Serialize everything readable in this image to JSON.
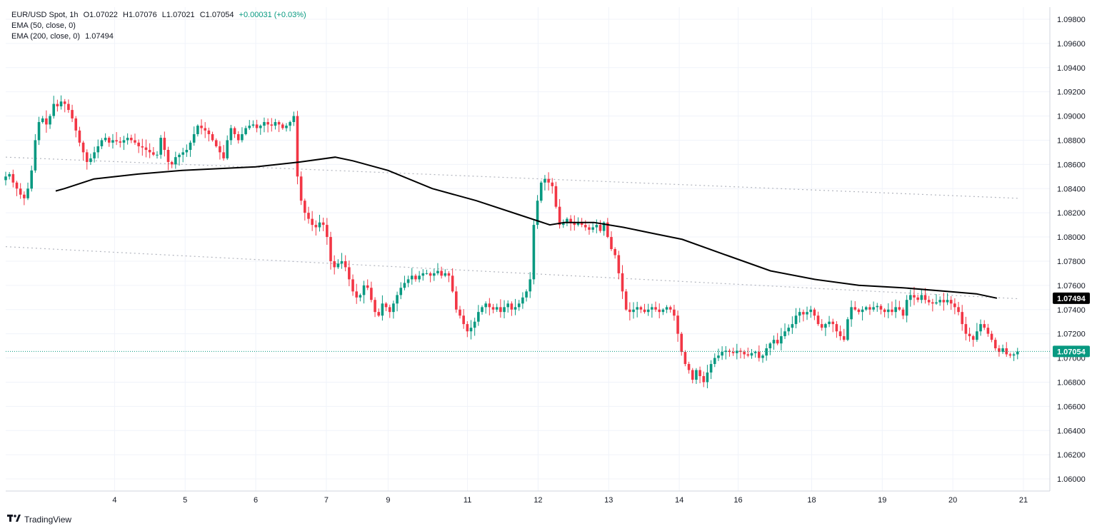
{
  "legend": {
    "symbol": "EUR/USD Spot, 1h",
    "open": "O1.07022",
    "high": "H1.07076",
    "low": "L1.07021",
    "close": "C1.07054",
    "change": "+0.00031 (+0.03%)",
    "ema50": "EMA (50, close, 0)",
    "ema200": "EMA (200, close, 0)",
    "ema200_value": "1.07494"
  },
  "brand": "TradingView",
  "colors": {
    "up": "#089981",
    "down": "#f23645",
    "ema": "#000000",
    "grid": "#f0f3fa",
    "trend": "#b2b5be"
  },
  "chart_data": {
    "type": "candlestick",
    "ylim": [
      1.059,
      1.099
    ],
    "y_ticks": [
      "1.09800",
      "1.09600",
      "1.09400",
      "1.09200",
      "1.09000",
      "1.08800",
      "1.08600",
      "1.08400",
      "1.08200",
      "1.08000",
      "1.07800",
      "1.07600",
      "1.07400",
      "1.07200",
      "1.07000",
      "1.06800",
      "1.06600",
      "1.06400",
      "1.06200",
      "1.06000"
    ],
    "x_ticks": [
      {
        "label": "4",
        "x": 37
      },
      {
        "label": "5",
        "x": 61
      },
      {
        "label": "6",
        "x": 85
      },
      {
        "label": "7",
        "x": 109
      },
      {
        "label": "9",
        "x": 130
      },
      {
        "label": "11",
        "x": 157
      },
      {
        "label": "12",
        "x": 181
      },
      {
        "label": "13",
        "x": 205
      },
      {
        "label": "14",
        "x": 229
      },
      {
        "label": "16",
        "x": 249
      },
      {
        "label": "18",
        "x": 274
      },
      {
        "label": "19",
        "x": 298
      },
      {
        "label": "20",
        "x": 322
      },
      {
        "label": "21",
        "x": 346
      }
    ],
    "x_range": [
      17,
      356
    ],
    "candles_close": [
      1.085,
      1.0852,
      1.0845,
      1.084,
      1.0835,
      1.0832,
      1.084,
      1.0855,
      1.088,
      1.0895,
      1.0898,
      1.0893,
      1.09,
      1.091,
      1.0908,
      1.0912,
      1.091,
      1.0905,
      1.0898,
      1.0888,
      1.0878,
      1.087,
      1.0862,
      1.0865,
      1.087,
      1.0875,
      1.088,
      1.0882,
      1.0878,
      1.088,
      1.0879,
      1.0878,
      1.088,
      1.0882,
      1.088,
      1.0878,
      1.0875,
      1.0874,
      1.0872,
      1.087,
      1.0868,
      1.0868,
      1.0882,
      1.0872,
      1.0862,
      1.086,
      1.0866,
      1.0868,
      1.087,
      1.0872,
      1.0878,
      1.0885,
      1.0892,
      1.089,
      1.0888,
      1.0885,
      1.088,
      1.0875,
      1.087,
      1.0865,
      1.088,
      1.089,
      1.0885,
      1.088,
      1.0885,
      1.089,
      1.0892,
      1.0893,
      1.089,
      1.0892,
      1.0895,
      1.0893,
      1.0892,
      1.0895,
      1.0893,
      1.089,
      1.0892,
      1.0895,
      1.09,
      1.085,
      1.083,
      1.082,
      1.0815,
      1.081,
      1.0808,
      1.0812,
      1.081,
      1.08,
      1.078,
      1.0775,
      1.0778,
      1.078,
      1.0775,
      1.0765,
      1.0755,
      1.075,
      1.0752,
      1.076,
      1.0758,
      1.0748,
      1.0738,
      1.0735,
      1.0745,
      1.0742,
      1.0738,
      1.0745,
      1.0752,
      1.0758,
      1.0762,
      1.0765,
      1.0768,
      1.0765,
      1.0768,
      1.077,
      1.077,
      1.0768,
      1.077,
      1.0772,
      1.0768,
      1.077,
      1.0768,
      1.0755,
      1.074,
      1.0735,
      1.0728,
      1.0722,
      1.0725,
      1.073,
      1.0738,
      1.0742,
      1.0745,
      1.0742,
      1.074,
      1.0742,
      1.0738,
      1.0742,
      1.0745,
      1.074,
      1.0742,
      1.0745,
      1.075,
      1.0755,
      1.0765,
      1.081,
      1.083,
      1.0845,
      1.0848,
      1.0845,
      1.0842,
      1.0825,
      1.081,
      1.0812,
      1.0815,
      1.0812,
      1.081,
      1.0812,
      1.081,
      1.0808,
      1.0806,
      1.0808,
      1.081,
      1.0805,
      1.0812,
      1.08,
      1.079,
      1.0785,
      1.077,
      1.0755,
      1.074,
      1.0738,
      1.074,
      1.0742,
      1.074,
      1.0738,
      1.074,
      1.0742,
      1.074,
      1.0738,
      1.074,
      1.0742,
      1.074,
      1.0735,
      1.072,
      1.0705,
      1.0695,
      1.069,
      1.0682,
      1.069,
      1.0685,
      1.068,
      1.0688,
      1.0695,
      1.07,
      1.0702,
      1.0705,
      1.0706,
      1.0705,
      1.0704,
      1.0706,
      1.0705,
      1.0703,
      1.0702,
      1.0704,
      1.0705,
      1.07,
      1.0702,
      1.0708,
      1.0712,
      1.0715,
      1.0712,
      1.0718,
      1.0722,
      1.0725,
      1.0728,
      1.0735,
      1.0738,
      1.0736,
      1.0738,
      1.074,
      1.0735,
      1.0728,
      1.0725,
      1.0728,
      1.073,
      1.0728,
      1.0722,
      1.0718,
      1.0715,
      1.0732,
      1.0742,
      1.074,
      1.0738,
      1.074,
      1.0742,
      1.074,
      1.0742,
      1.0743,
      1.074,
      1.0738,
      1.074,
      1.0738,
      1.0742,
      1.074,
      1.0735,
      1.0748,
      1.0752,
      1.075,
      1.0748,
      1.0752,
      1.0748,
      1.0746,
      1.0745,
      1.0746,
      1.0748,
      1.0746,
      1.0748,
      1.0745,
      1.0742,
      1.0738,
      1.0728,
      1.072,
      1.0718,
      1.0715,
      1.0722,
      1.0728,
      1.0725,
      1.072,
      1.0715,
      1.0708,
      1.0705,
      1.0708,
      1.0703,
      1.0702,
      1.0703,
      1.07054
    ],
    "ema200": [
      [
        17,
        1.0838
      ],
      [
        20,
        1.084
      ],
      [
        30,
        1.0848
      ],
      [
        45,
        1.0852
      ],
      [
        60,
        1.0855
      ],
      [
        85,
        1.0858
      ],
      [
        100,
        1.0862
      ],
      [
        112,
        1.0866
      ],
      [
        118,
        1.0863
      ],
      [
        130,
        1.0855
      ],
      [
        145,
        1.084
      ],
      [
        160,
        1.083
      ],
      [
        175,
        1.0818
      ],
      [
        185,
        1.081
      ],
      [
        190,
        1.0812
      ],
      [
        200,
        1.0812
      ],
      [
        210,
        1.0808
      ],
      [
        220,
        1.0803
      ],
      [
        230,
        1.0798
      ],
      [
        245,
        1.0785
      ],
      [
        260,
        1.0772
      ],
      [
        275,
        1.0765
      ],
      [
        290,
        1.076
      ],
      [
        305,
        1.0758
      ],
      [
        320,
        1.0755
      ],
      [
        330,
        1.0753
      ],
      [
        337,
        1.07494
      ]
    ],
    "trendlines": [
      [
        [
          0,
          1.0866
        ],
        [
          344,
          1.0832
        ]
      ],
      [
        [
          0,
          1.0792
        ],
        [
          344,
          1.0749
        ]
      ]
    ],
    "last_price": "1.07054",
    "ema_last": "1.07494"
  }
}
